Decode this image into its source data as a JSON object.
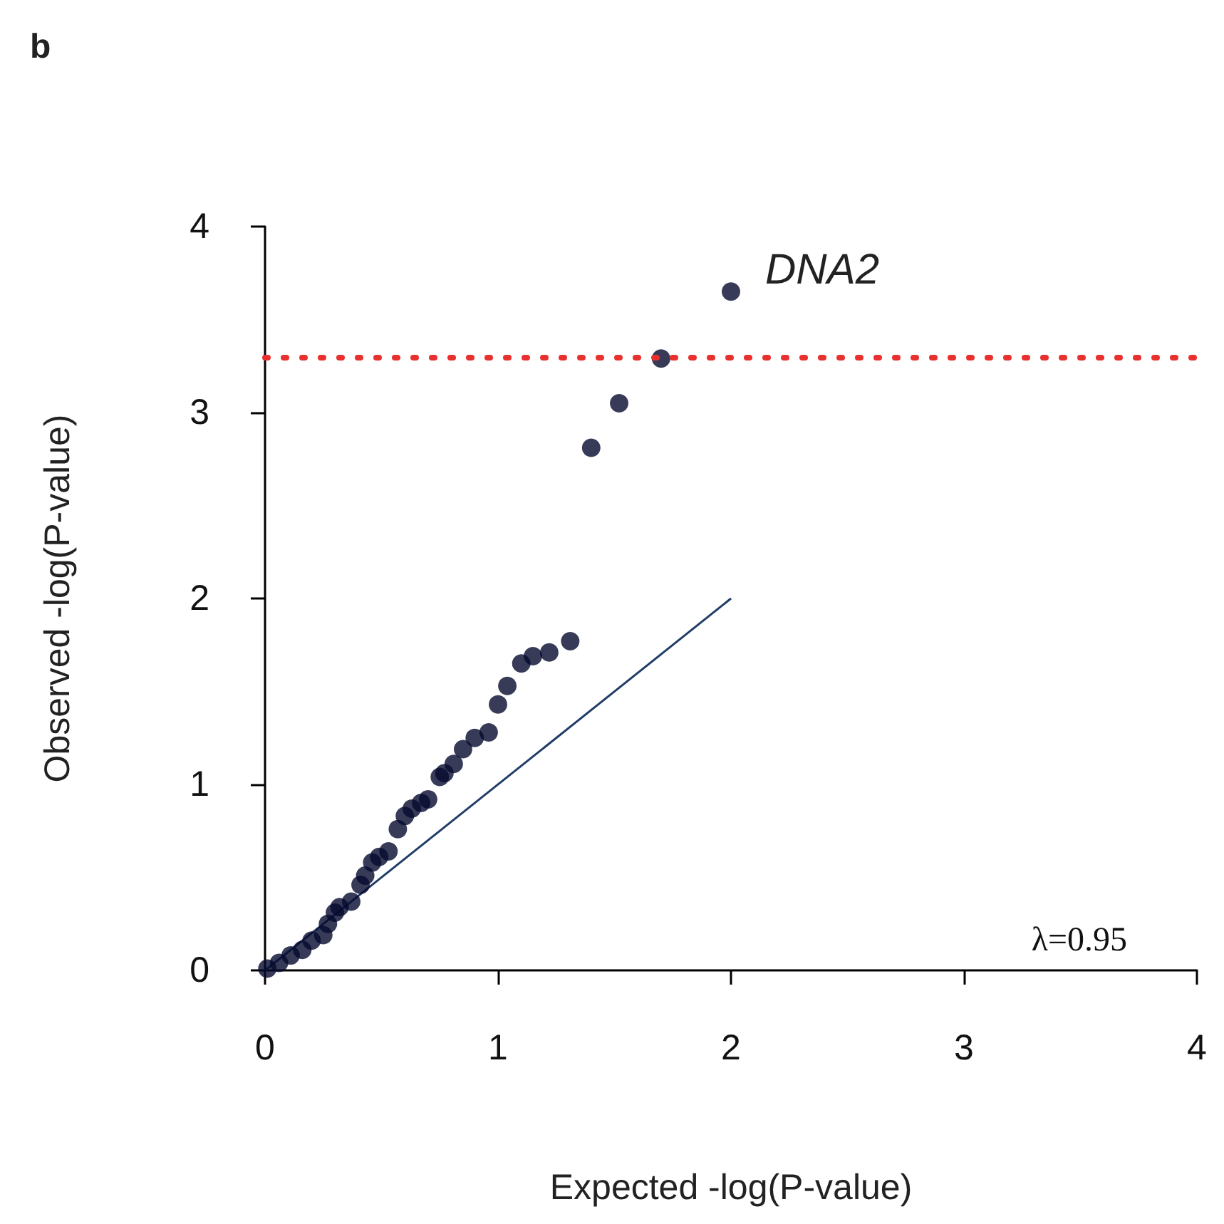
{
  "chart_data": {
    "type": "scatter",
    "title": "b",
    "xlabel": "Expected -log(P-value)",
    "ylabel": "Observed -log(P-value)",
    "xlim": [
      0,
      4
    ],
    "xticks": [
      0,
      1,
      2,
      3,
      4
    ],
    "ylim": [
      0,
      4
    ],
    "yticks": [
      0,
      1,
      2,
      3,
      4
    ],
    "grid": false,
    "marker": "circle",
    "series": [
      {
        "type": "line",
        "color": "#1f3d66",
        "x": [
          0,
          2
        ],
        "values": [
          0,
          2
        ],
        "line_style": "solid",
        "marker": "none"
      },
      {
        "color": "#050a2e",
        "x": [
          0.01,
          0.06,
          0.11,
          0.16,
          0.2,
          0.25,
          0.27,
          0.3,
          0.32,
          0.37,
          0.41,
          0.43,
          0.46,
          0.49,
          0.53,
          0.57,
          0.6,
          0.63,
          0.67,
          0.7,
          0.75,
          0.77,
          0.81,
          0.85,
          0.9,
          0.96,
          1.0,
          1.04,
          1.1,
          1.15,
          1.22,
          1.31,
          1.4,
          1.52,
          1.7,
          2.0
        ],
        "values": [
          0.01,
          0.04,
          0.08,
          0.11,
          0.16,
          0.19,
          0.25,
          0.31,
          0.34,
          0.37,
          0.46,
          0.51,
          0.58,
          0.61,
          0.64,
          0.76,
          0.83,
          0.87,
          0.9,
          0.92,
          1.04,
          1.06,
          1.11,
          1.19,
          1.25,
          1.28,
          1.43,
          1.53,
          1.65,
          1.69,
          1.71,
          1.77,
          2.81,
          3.05,
          3.29,
          3.65
        ]
      }
    ],
    "ref_lines": [
      {
        "axis": "y",
        "value": 3.3,
        "color": "#e8312f",
        "line_style": "dotted"
      }
    ],
    "annotations": [
      {
        "text": "DNA2",
        "x": 2.0,
        "y": 3.65
      },
      "λ=0.95"
    ]
  }
}
